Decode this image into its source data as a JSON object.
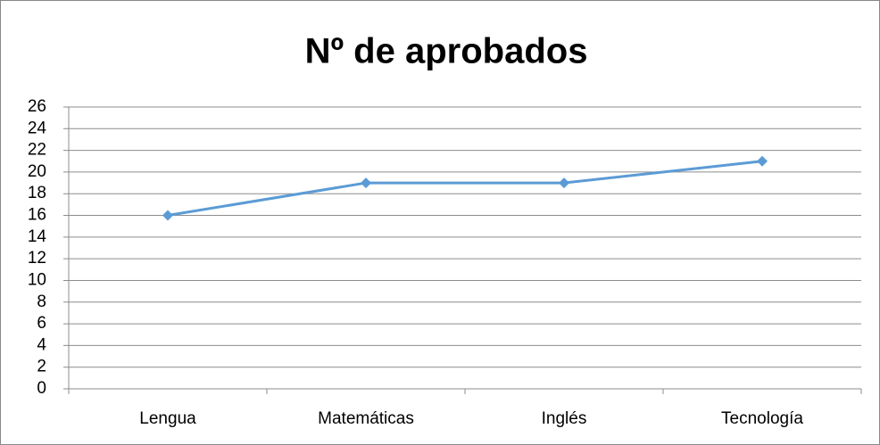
{
  "chart_data": {
    "type": "line",
    "title": "Nº de aprobados",
    "categories": [
      "Lengua",
      "Matemáticas",
      "Inglés",
      "Tecnología"
    ],
    "values": [
      16,
      19,
      19,
      21
    ],
    "color": "#5b9bd5",
    "ylim": [
      0,
      26
    ],
    "yticks": [
      0,
      2,
      4,
      6,
      8,
      10,
      12,
      14,
      16,
      18,
      20,
      22,
      24,
      26
    ],
    "grid": true
  }
}
